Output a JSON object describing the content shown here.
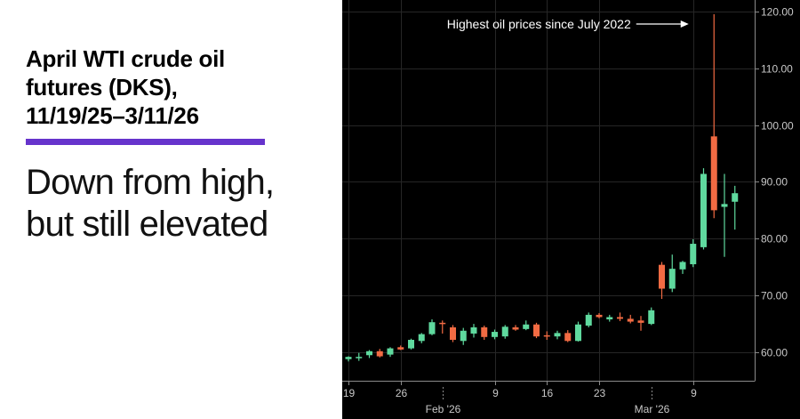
{
  "header": {
    "title_lines": [
      "April WTI crude oil",
      "futures (DKS),",
      "11/19/25–3/11/26"
    ],
    "subtitle_lines": [
      "Down from high,",
      "but still elevated"
    ]
  },
  "colors": {
    "background": "#000000",
    "up": "#5fd99e",
    "down": "#f26b43",
    "grid": "#262626",
    "axis_text": "#c8c8c8",
    "accent_rule": "#6633cc"
  },
  "chart_data": {
    "type": "candlestick",
    "ylim": [
      55,
      122
    ],
    "y_ticks": [
      60,
      70,
      80,
      90,
      100,
      110,
      120
    ],
    "y_tick_labels": [
      "60.00",
      "70.00",
      "80.00",
      "90.00",
      "100.00",
      "110.00",
      "120.00"
    ],
    "x_day_labels": [
      {
        "text": "19",
        "slot": 0
      },
      {
        "text": "26",
        "slot": 5
      },
      {
        "text": "9",
        "slot": 14
      },
      {
        "text": "16",
        "slot": 19
      },
      {
        "text": "23",
        "slot": 24
      },
      {
        "text": "9",
        "slot": 33
      }
    ],
    "x_month_labels": [
      {
        "text": "Feb '26",
        "slot": 9
      },
      {
        "text": "Mar '26",
        "slot": 29
      }
    ],
    "annotation": {
      "text": "Highest oil prices since July 2022",
      "slot": 33,
      "value": 119.5
    },
    "candles": [
      {
        "o": 58.8,
        "h": 59.3,
        "l": 58.4,
        "c": 59.2
      },
      {
        "o": 59.1,
        "h": 59.9,
        "l": 58.5,
        "c": 59.2
      },
      {
        "o": 59.5,
        "h": 60.4,
        "l": 59.0,
        "c": 60.2
      },
      {
        "o": 60.2,
        "h": 60.6,
        "l": 59.1,
        "c": 59.3
      },
      {
        "o": 59.6,
        "h": 60.9,
        "l": 59.2,
        "c": 60.7
      },
      {
        "o": 60.9,
        "h": 61.2,
        "l": 60.4,
        "c": 60.5
      },
      {
        "o": 60.7,
        "h": 62.4,
        "l": 60.5,
        "c": 62.2
      },
      {
        "o": 62.0,
        "h": 63.4,
        "l": 61.6,
        "c": 63.2
      },
      {
        "o": 63.2,
        "h": 65.8,
        "l": 63.0,
        "c": 65.3
      },
      {
        "o": 65.2,
        "h": 65.6,
        "l": 63.3,
        "c": 65.0
      },
      {
        "o": 64.4,
        "h": 64.8,
        "l": 61.8,
        "c": 62.2
      },
      {
        "o": 62.0,
        "h": 64.3,
        "l": 61.3,
        "c": 63.8
      },
      {
        "o": 63.3,
        "h": 65.0,
        "l": 62.6,
        "c": 64.4
      },
      {
        "o": 64.4,
        "h": 64.7,
        "l": 62.2,
        "c": 62.7
      },
      {
        "o": 62.7,
        "h": 64.0,
        "l": 62.3,
        "c": 63.6
      },
      {
        "o": 62.8,
        "h": 64.8,
        "l": 62.4,
        "c": 64.5
      },
      {
        "o": 64.4,
        "h": 64.8,
        "l": 63.8,
        "c": 64.0
      },
      {
        "o": 64.1,
        "h": 65.6,
        "l": 63.9,
        "c": 64.9
      },
      {
        "o": 64.9,
        "h": 65.2,
        "l": 62.5,
        "c": 62.8
      },
      {
        "o": 63.0,
        "h": 63.7,
        "l": 62.2,
        "c": 62.8
      },
      {
        "o": 62.8,
        "h": 63.8,
        "l": 62.3,
        "c": 63.4
      },
      {
        "o": 63.4,
        "h": 63.9,
        "l": 61.8,
        "c": 62.0
      },
      {
        "o": 62.0,
        "h": 65.4,
        "l": 61.9,
        "c": 64.9
      },
      {
        "o": 64.7,
        "h": 67.0,
        "l": 64.4,
        "c": 66.6
      },
      {
        "o": 66.6,
        "h": 66.9,
        "l": 66.0,
        "c": 66.2
      },
      {
        "o": 65.8,
        "h": 66.6,
        "l": 65.4,
        "c": 66.2
      },
      {
        "o": 66.2,
        "h": 67.0,
        "l": 65.5,
        "c": 65.9
      },
      {
        "o": 65.9,
        "h": 66.6,
        "l": 65.1,
        "c": 65.4
      },
      {
        "o": 65.6,
        "h": 66.4,
        "l": 63.8,
        "c": 65.2
      },
      {
        "o": 65.0,
        "h": 67.9,
        "l": 64.8,
        "c": 67.4
      },
      {
        "o": 75.4,
        "h": 75.9,
        "l": 69.4,
        "c": 71.2
      },
      {
        "o": 71.2,
        "h": 77.2,
        "l": 70.6,
        "c": 74.7
      },
      {
        "o": 74.6,
        "h": 76.1,
        "l": 73.8,
        "c": 75.9
      },
      {
        "o": 75.5,
        "h": 79.9,
        "l": 75.0,
        "c": 79.1
      },
      {
        "o": 78.5,
        "h": 92.4,
        "l": 78.1,
        "c": 91.4
      },
      {
        "o": 98.0,
        "h": 119.5,
        "l": 83.6,
        "c": 85.0
      },
      {
        "o": 85.6,
        "h": 91.4,
        "l": 76.8,
        "c": 86.1
      },
      {
        "o": 86.5,
        "h": 89.3,
        "l": 81.6,
        "c": 88.0
      }
    ]
  }
}
